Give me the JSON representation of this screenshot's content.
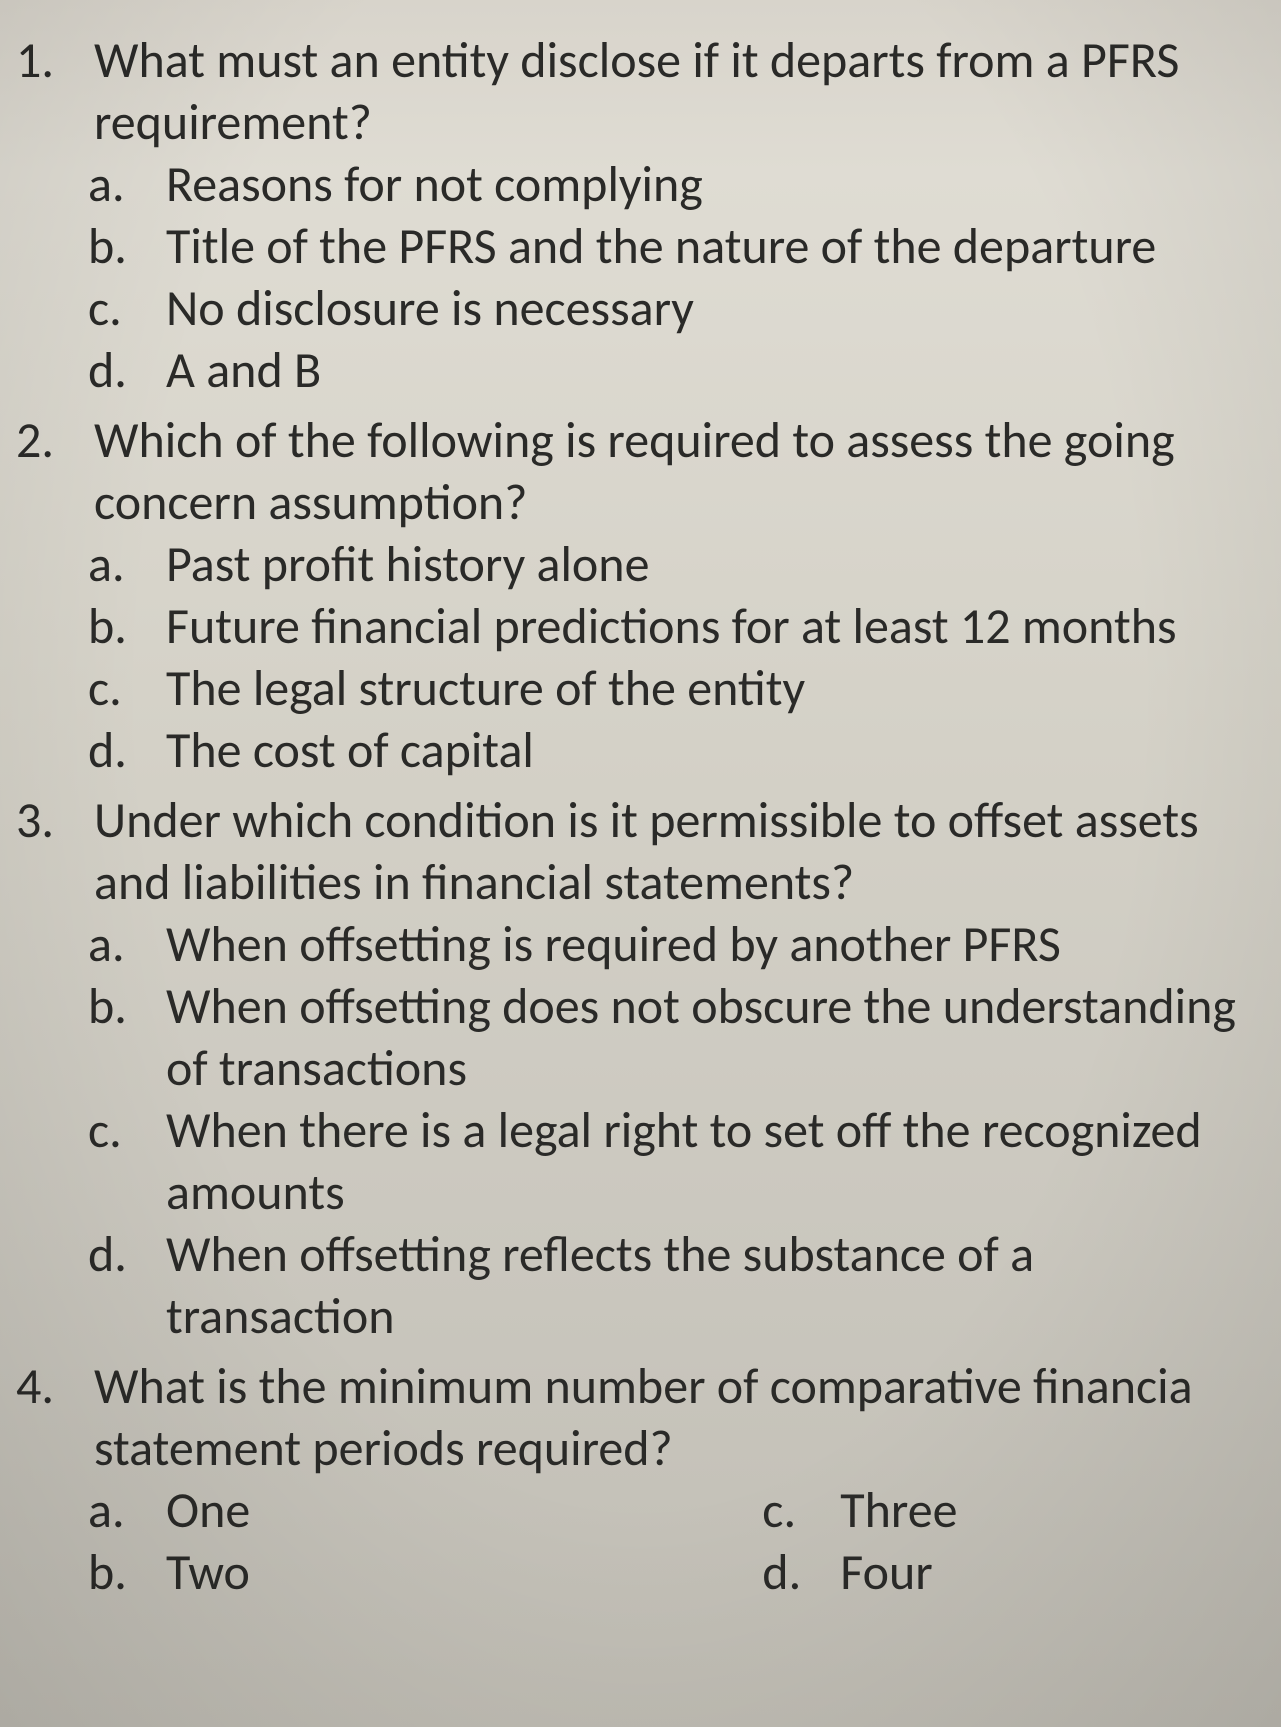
{
  "questions": [
    {
      "num": "1.",
      "text": "What must an entity disclose if it departs from a PFRS requirement?",
      "options": [
        {
          "letter": "a.",
          "text": "Reasons for not complying"
        },
        {
          "letter": "b.",
          "text": "Title of the PFRS and the nature of the departure"
        },
        {
          "letter": "c.",
          "text": "No disclosure is necessary"
        },
        {
          "letter": "d.",
          "text": "A and B"
        }
      ]
    },
    {
      "num": "2.",
      "text": "Which of the following is required to assess the going concern assumption?",
      "options": [
        {
          "letter": "a.",
          "text": "Past profit history alone"
        },
        {
          "letter": "b.",
          "text": "Future financial predictions for at least 12 months"
        },
        {
          "letter": "c.",
          "text": "The legal structure of the entity"
        },
        {
          "letter": "d.",
          "text": "The cost of capital"
        }
      ]
    },
    {
      "num": "3.",
      "text": "Under which condition is it permissible to offset assets and liabilities in financial statements?",
      "options": [
        {
          "letter": "a.",
          "text": "When offsetting is required by another PFRS"
        },
        {
          "letter": "b.",
          "text": "When offsetting does not obscure the understanding of transactions"
        },
        {
          "letter": "c.",
          "text": "When there is a legal right to set off the recognized amounts"
        },
        {
          "letter": "d.",
          "text": "When offsetting reflects the substance of a transaction"
        }
      ]
    },
    {
      "num": "4.",
      "text": "What is the minimum number of comparative financia statement periods required?",
      "options_two_col": {
        "left": [
          {
            "letter": "a.",
            "text": "One"
          },
          {
            "letter": "b.",
            "text": "Two"
          }
        ],
        "right": [
          {
            "letter": "c.",
            "text": "Three"
          },
          {
            "letter": "d.",
            "text": "Four"
          }
        ]
      }
    }
  ]
}
